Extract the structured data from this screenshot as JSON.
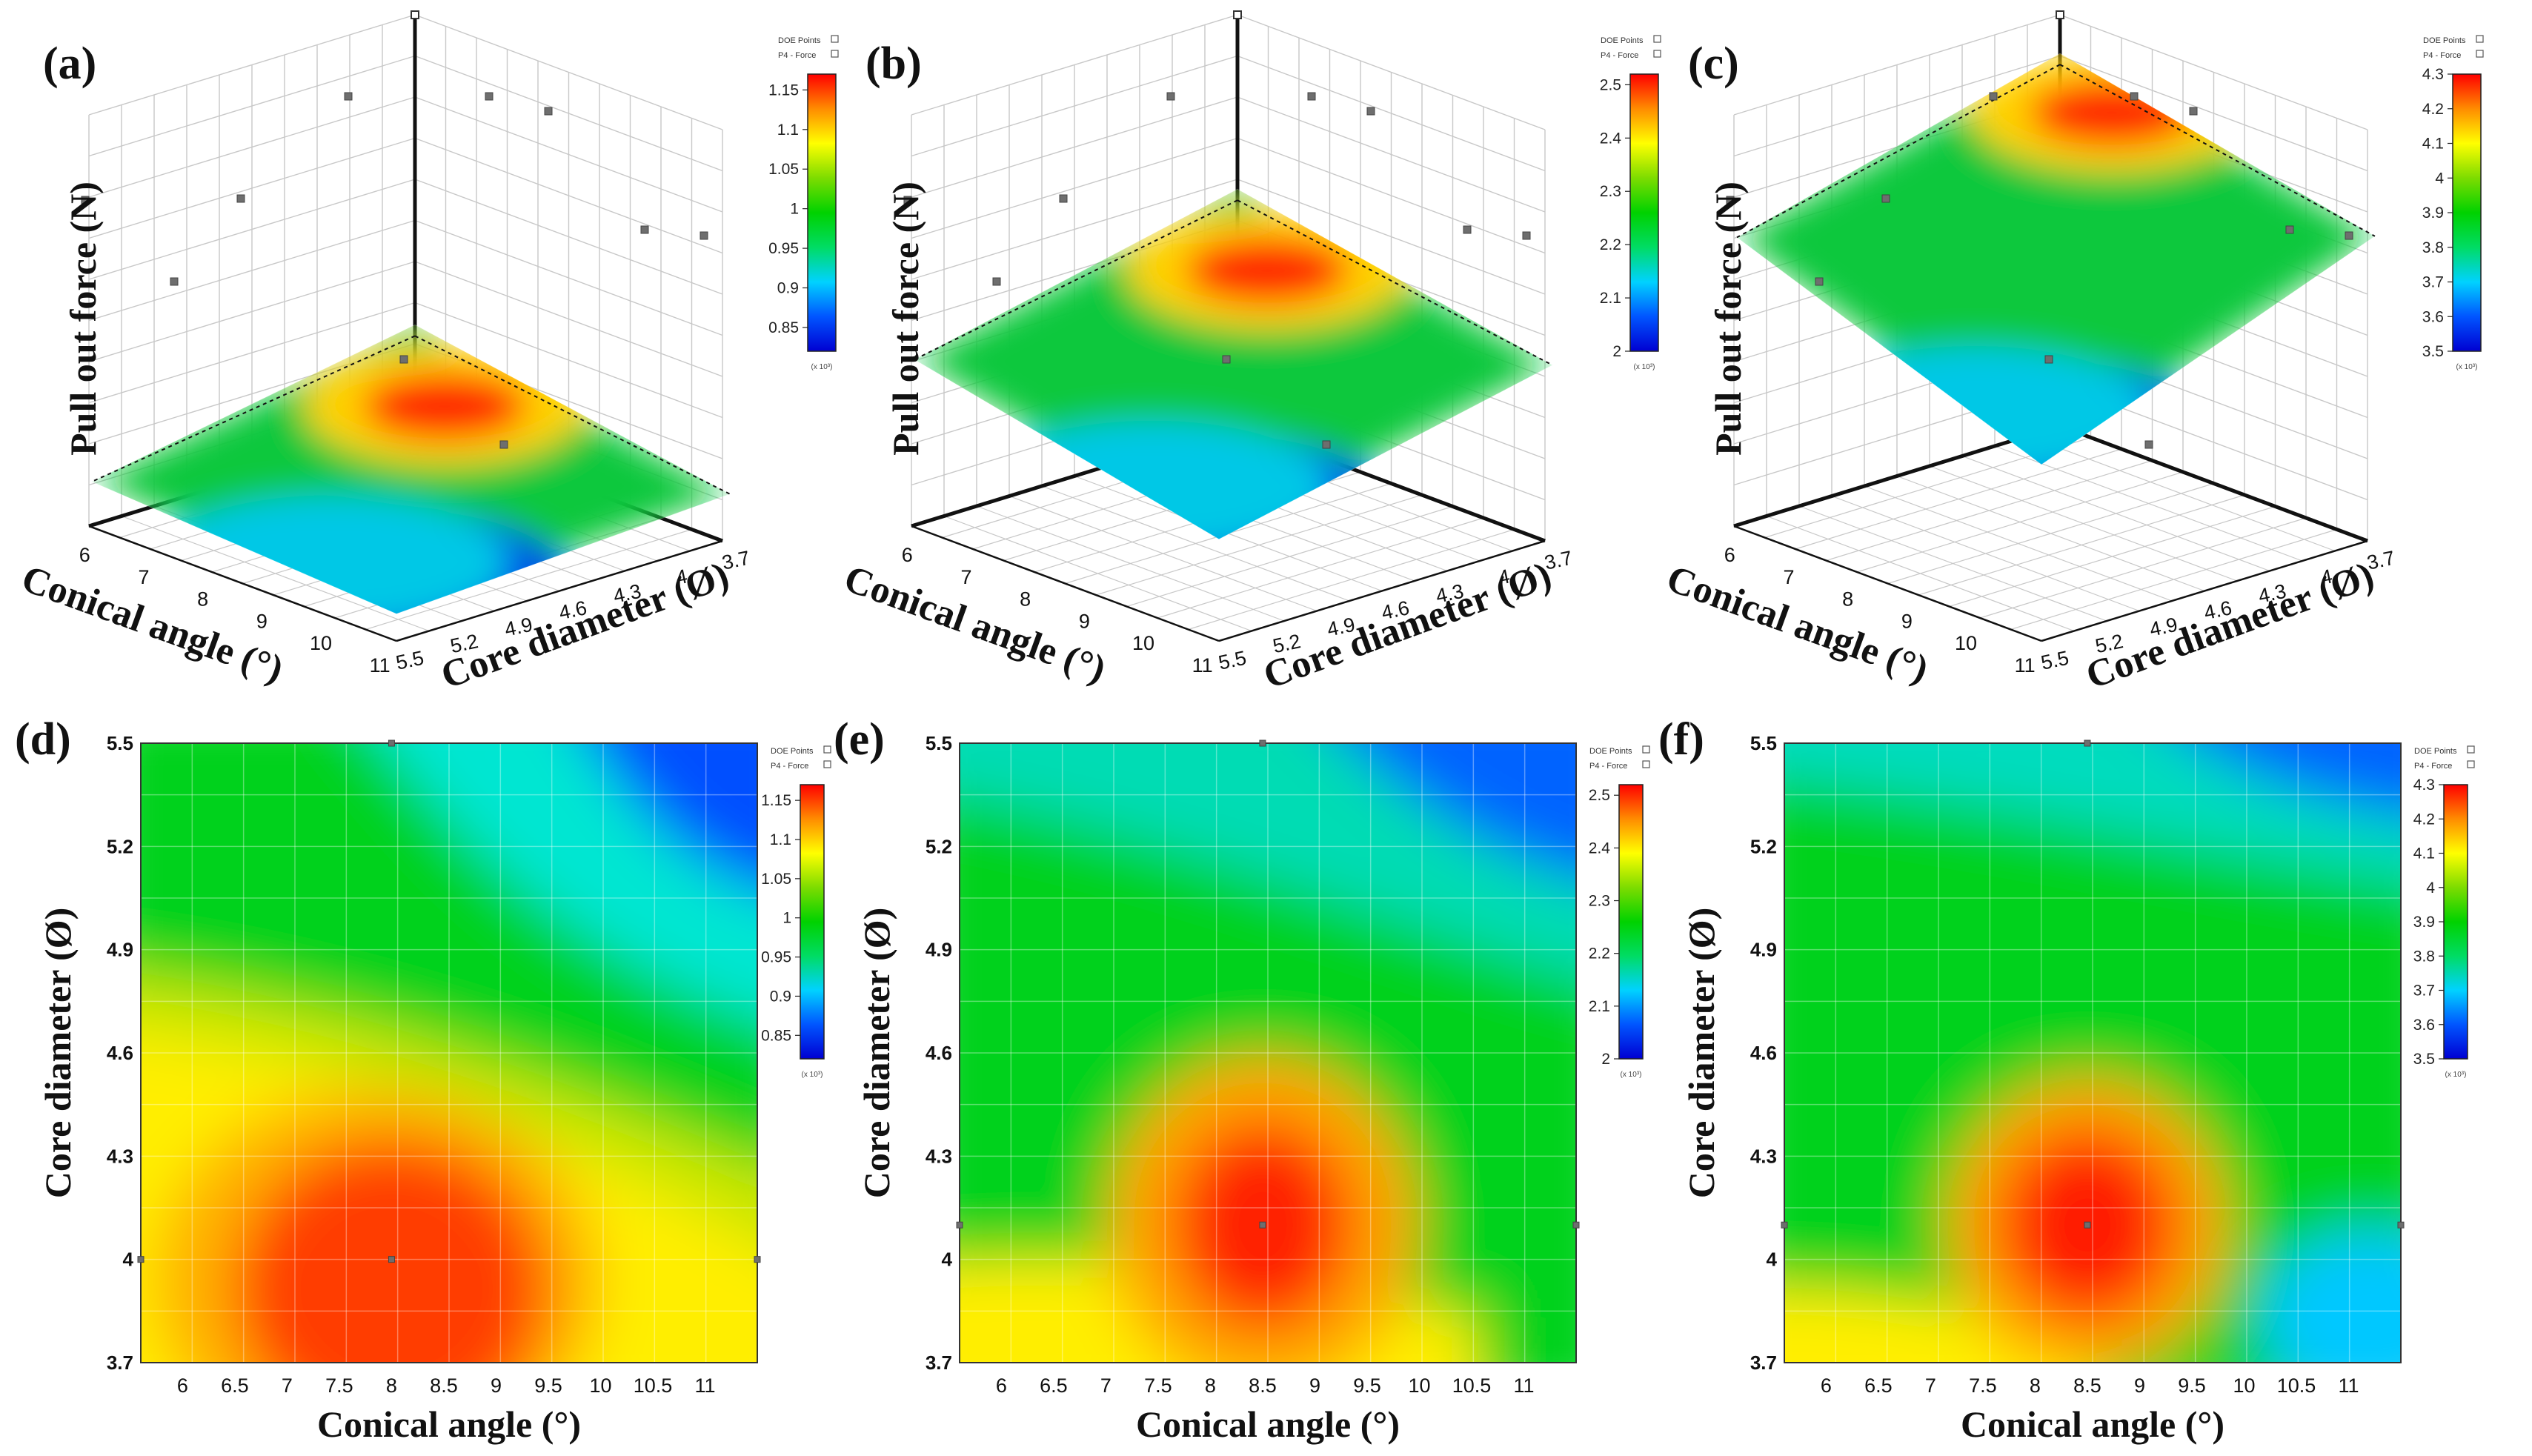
{
  "figure": {
    "description_labels": [
      "(a)",
      "(b)",
      "(c)",
      "(d)",
      "(e)",
      "(f)"
    ]
  },
  "colors": {
    "colormap": [
      "#0000d2",
      "#0055ff",
      "#00d2ff",
      "#00dc64",
      "#00d200",
      "#7ddc00",
      "#ffff00",
      "#ff8c00",
      "#ff0000"
    ],
    "axis": "#000000",
    "grid": "#c8c8c8",
    "doe_point": "#6e6e6e"
  },
  "legend": {
    "doe_label": "DOE Points",
    "series_label": "P4 - Force",
    "multiplier": "(x 10³)"
  },
  "chart_data": [
    {
      "id": "a",
      "type": "surface3d",
      "panel_label": "(a)",
      "zlabel": "Pull out force (N)",
      "xlabel": "Conical angle (°)",
      "ylabel": "Core diameter (Ø)",
      "x_ticks": [
        "6",
        "7",
        "8",
        "9",
        "10",
        "11"
      ],
      "y_ticks": [
        "3.7",
        "4",
        "4.3",
        "4.6",
        "4.9",
        "5.2",
        "5.5"
      ],
      "xlim": [
        5.5,
        11.5
      ],
      "ylim": [
        3.7,
        5.5
      ],
      "colorbar_ticks": [
        "1.15",
        "1.1",
        "1.05",
        "1",
        "0.95",
        "0.9",
        "0.85"
      ],
      "colorbar_range": [
        0.82,
        1.17
      ],
      "peak": {
        "conical_angle": 8.0,
        "core_diameter": 4.0,
        "force_kN": 1.16
      }
    },
    {
      "id": "b",
      "type": "surface3d",
      "panel_label": "(b)",
      "zlabel": "Pull out force (N)",
      "xlabel": "Conical angle (°)",
      "ylabel": "Core diameter (Ø)",
      "x_ticks": [
        "6",
        "7",
        "8",
        "9",
        "10",
        "11"
      ],
      "y_ticks": [
        "3.7",
        "4",
        "4.3",
        "4.6",
        "4.9",
        "5.2",
        "5.5"
      ],
      "xlim": [
        5.5,
        11.5
      ],
      "ylim": [
        3.7,
        5.5
      ],
      "colorbar_ticks": [
        "2.5",
        "2.4",
        "2.3",
        "2.2",
        "2.1",
        "2"
      ],
      "colorbar_range": [
        2.0,
        2.52
      ],
      "peak": {
        "conical_angle": 8.5,
        "core_diameter": 4.1,
        "force_kN": 2.5
      }
    },
    {
      "id": "c",
      "type": "surface3d",
      "panel_label": "(c)",
      "zlabel": "Pull out force (N)",
      "xlabel": "Conical angle (°)",
      "ylabel": "Core diameter (Ø)",
      "x_ticks": [
        "6",
        "7",
        "8",
        "9",
        "10",
        "11"
      ],
      "y_ticks": [
        "3.7",
        "4",
        "4.3",
        "4.6",
        "4.9",
        "5.2",
        "5.5"
      ],
      "xlim": [
        5.5,
        11.5
      ],
      "ylim": [
        3.7,
        5.5
      ],
      "colorbar_ticks": [
        "4.3",
        "4.2",
        "4.1",
        "4",
        "3.9",
        "3.8",
        "3.7",
        "3.6",
        "3.5"
      ],
      "colorbar_range": [
        3.5,
        4.3
      ],
      "peak": {
        "conical_angle": 8.5,
        "core_diameter": 4.1,
        "force_kN": 4.3
      }
    },
    {
      "id": "d",
      "type": "heatmap",
      "panel_label": "(d)",
      "xlabel": "Conical angle (°)",
      "ylabel": "Core diameter (Ø)",
      "x_ticks": [
        "6",
        "6.5",
        "7",
        "7.5",
        "8",
        "8.5",
        "9",
        "9.5",
        "10",
        "10.5",
        "11"
      ],
      "y_ticks": [
        "3.7",
        "4",
        "4.3",
        "4.6",
        "4.9",
        "5.2",
        "5.5"
      ],
      "xlim": [
        5.6,
        11.5
      ],
      "ylim": [
        3.7,
        5.5
      ],
      "colorbar_ticks": [
        "1.15",
        "1.1",
        "1.05",
        "1",
        "0.95",
        "0.9",
        "0.85"
      ],
      "colorbar_range": [
        0.82,
        1.17
      ],
      "peak": {
        "conical_angle": 8.0,
        "core_diameter": 4.0,
        "force_kN": 1.16
      }
    },
    {
      "id": "e",
      "type": "heatmap",
      "panel_label": "(e)",
      "xlabel": "Conical angle (°)",
      "ylabel": "Core diameter (Ø)",
      "x_ticks": [
        "6",
        "6.5",
        "7",
        "7.5",
        "8",
        "8.5",
        "9",
        "9.5",
        "10",
        "10.5",
        "11"
      ],
      "y_ticks": [
        "3.7",
        "4",
        "4.3",
        "4.6",
        "4.9",
        "5.2",
        "5.5"
      ],
      "xlim": [
        5.6,
        11.5
      ],
      "ylim": [
        3.7,
        5.5
      ],
      "colorbar_ticks": [
        "2.5",
        "2.4",
        "2.3",
        "2.2",
        "2.1",
        "2"
      ],
      "colorbar_range": [
        2.0,
        2.52
      ],
      "peak": {
        "conical_angle": 8.5,
        "core_diameter": 4.1,
        "force_kN": 2.5
      }
    },
    {
      "id": "f",
      "type": "heatmap",
      "panel_label": "(f)",
      "xlabel": "Conical angle (°)",
      "ylabel": "Core diameter (Ø)",
      "x_ticks": [
        "6",
        "6.5",
        "7",
        "7.5",
        "8",
        "8.5",
        "9",
        "9.5",
        "10",
        "10.5",
        "11"
      ],
      "y_ticks": [
        "3.7",
        "4",
        "4.3",
        "4.6",
        "4.9",
        "5.2",
        "5.5"
      ],
      "xlim": [
        5.6,
        11.5
      ],
      "ylim": [
        3.7,
        5.5
      ],
      "colorbar_ticks": [
        "4.3",
        "4.2",
        "4.1",
        "4",
        "3.9",
        "3.8",
        "3.7",
        "3.6",
        "3.5"
      ],
      "colorbar_range": [
        3.5,
        4.3
      ],
      "peak": {
        "conical_angle": 8.5,
        "core_diameter": 4.1,
        "force_kN": 4.3
      }
    }
  ]
}
